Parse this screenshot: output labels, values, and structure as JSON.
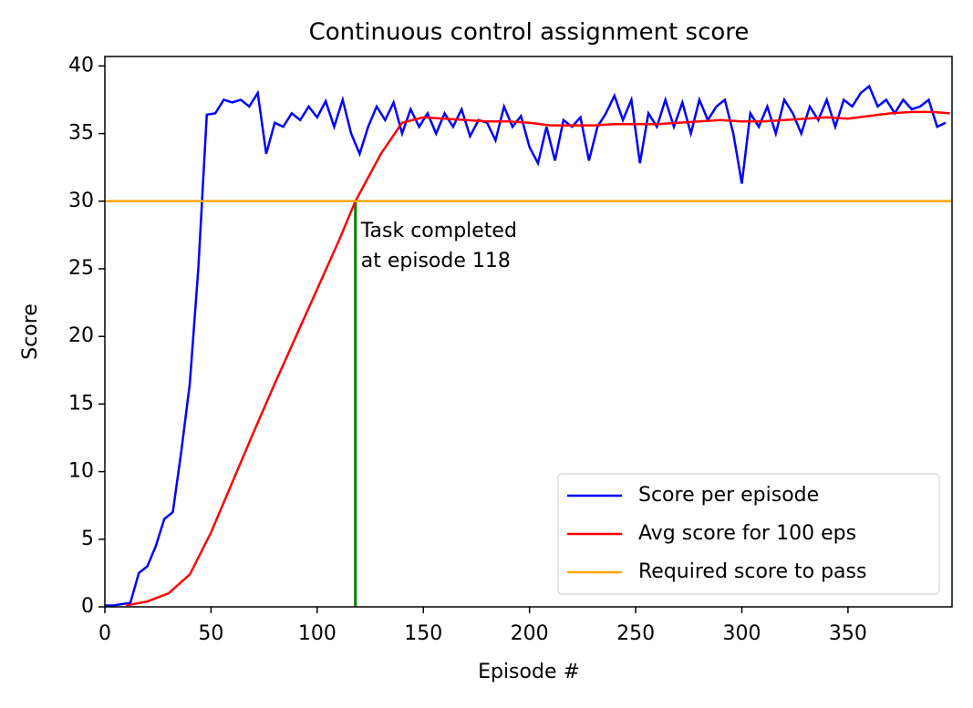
{
  "chart_data": {
    "type": "line",
    "title": "Continuous control assignment score",
    "x_label": "Episode #",
    "y_label": "Score",
    "xlim": [
      0,
      399
    ],
    "ylim": [
      0,
      40.7
    ],
    "xticks": [
      0,
      50,
      100,
      150,
      200,
      250,
      300,
      350
    ],
    "yticks": [
      0,
      5,
      10,
      15,
      20,
      25,
      30,
      35,
      40
    ],
    "legend": "lower right",
    "series": [
      {
        "name": "Score per episode",
        "color": "#0000ff",
        "x": [
          0,
          4,
          8,
          12,
          16,
          20,
          24,
          28,
          32,
          36,
          40,
          44,
          48,
          52,
          56,
          60,
          64,
          68,
          72,
          76,
          80,
          84,
          88,
          92,
          96,
          100,
          104,
          108,
          112,
          116,
          120,
          124,
          128,
          132,
          136,
          140,
          144,
          148,
          152,
          156,
          160,
          164,
          168,
          172,
          176,
          180,
          184,
          188,
          192,
          196,
          200,
          204,
          208,
          212,
          216,
          220,
          224,
          228,
          232,
          236,
          240,
          244,
          248,
          252,
          256,
          260,
          264,
          268,
          272,
          276,
          280,
          284,
          288,
          292,
          296,
          300,
          304,
          308,
          312,
          316,
          320,
          324,
          328,
          332,
          336,
          340,
          344,
          348,
          352,
          356,
          360,
          364,
          368,
          372,
          376,
          380,
          384,
          388,
          392,
          396
        ],
        "values": [
          0.1,
          0.1,
          0.2,
          0.3,
          2.5,
          3.0,
          4.5,
          6.5,
          7.0,
          11.5,
          16.5,
          25,
          36.4,
          36.5,
          37.5,
          37.3,
          37.5,
          37.0,
          38.0,
          33.5,
          35.8,
          35.5,
          36.5,
          36.0,
          37.0,
          36.2,
          37.4,
          35.5,
          37.5,
          35.0,
          33.5,
          35.5,
          37.0,
          36.0,
          37.3,
          35.0,
          36.8,
          35.5,
          36.5,
          35.0,
          36.5,
          35.5,
          36.8,
          34.8,
          36.0,
          35.8,
          34.5,
          37.0,
          35.5,
          36.3,
          34.0,
          32.8,
          35.5,
          33.0,
          36.0,
          35.5,
          36.2,
          33.0,
          35.5,
          36.5,
          37.8,
          36.0,
          37.5,
          32.8,
          36.5,
          35.5,
          37.5,
          35.5,
          37.3,
          35.0,
          37.5,
          36.0,
          37.0,
          37.5,
          35.0,
          31.3,
          36.5,
          35.5,
          37.0,
          35.0,
          37.5,
          36.5,
          35.0,
          37.0,
          36.0,
          37.5,
          35.5,
          37.5,
          37.0,
          38.0,
          38.5,
          37.0,
          37.5,
          36.5,
          37.5,
          36.8,
          37.0,
          37.5,
          35.5,
          35.8
        ]
      },
      {
        "name": "Avg score for 100 eps",
        "color": "#ff0000",
        "x": [
          10,
          20,
          30,
          40,
          50,
          60,
          70,
          80,
          90,
          100,
          110,
          118,
          130,
          140,
          150,
          160,
          170,
          180,
          190,
          200,
          210,
          220,
          230,
          240,
          250,
          260,
          270,
          280,
          290,
          300,
          310,
          320,
          330,
          340,
          350,
          360,
          370,
          380,
          390,
          398
        ],
        "values": [
          0.1,
          0.4,
          1.0,
          2.4,
          5.5,
          9.2,
          12.9,
          16.5,
          20.0,
          23.5,
          27.0,
          30,
          33.5,
          35.8,
          36.2,
          36.1,
          36.0,
          35.9,
          35.9,
          35.8,
          35.6,
          35.6,
          35.6,
          35.7,
          35.7,
          35.7,
          35.8,
          35.9,
          36.0,
          35.9,
          35.9,
          36.0,
          36.1,
          36.2,
          36.1,
          36.3,
          36.5,
          36.6,
          36.6,
          36.5
        ]
      }
    ],
    "threshold": {
      "name": "Required score to pass",
      "color": "#ffa500",
      "value": 30
    },
    "vline": {
      "color": "#008000",
      "x": 118
    },
    "annotation": [
      "Task completed",
      "at episode 118"
    ]
  }
}
